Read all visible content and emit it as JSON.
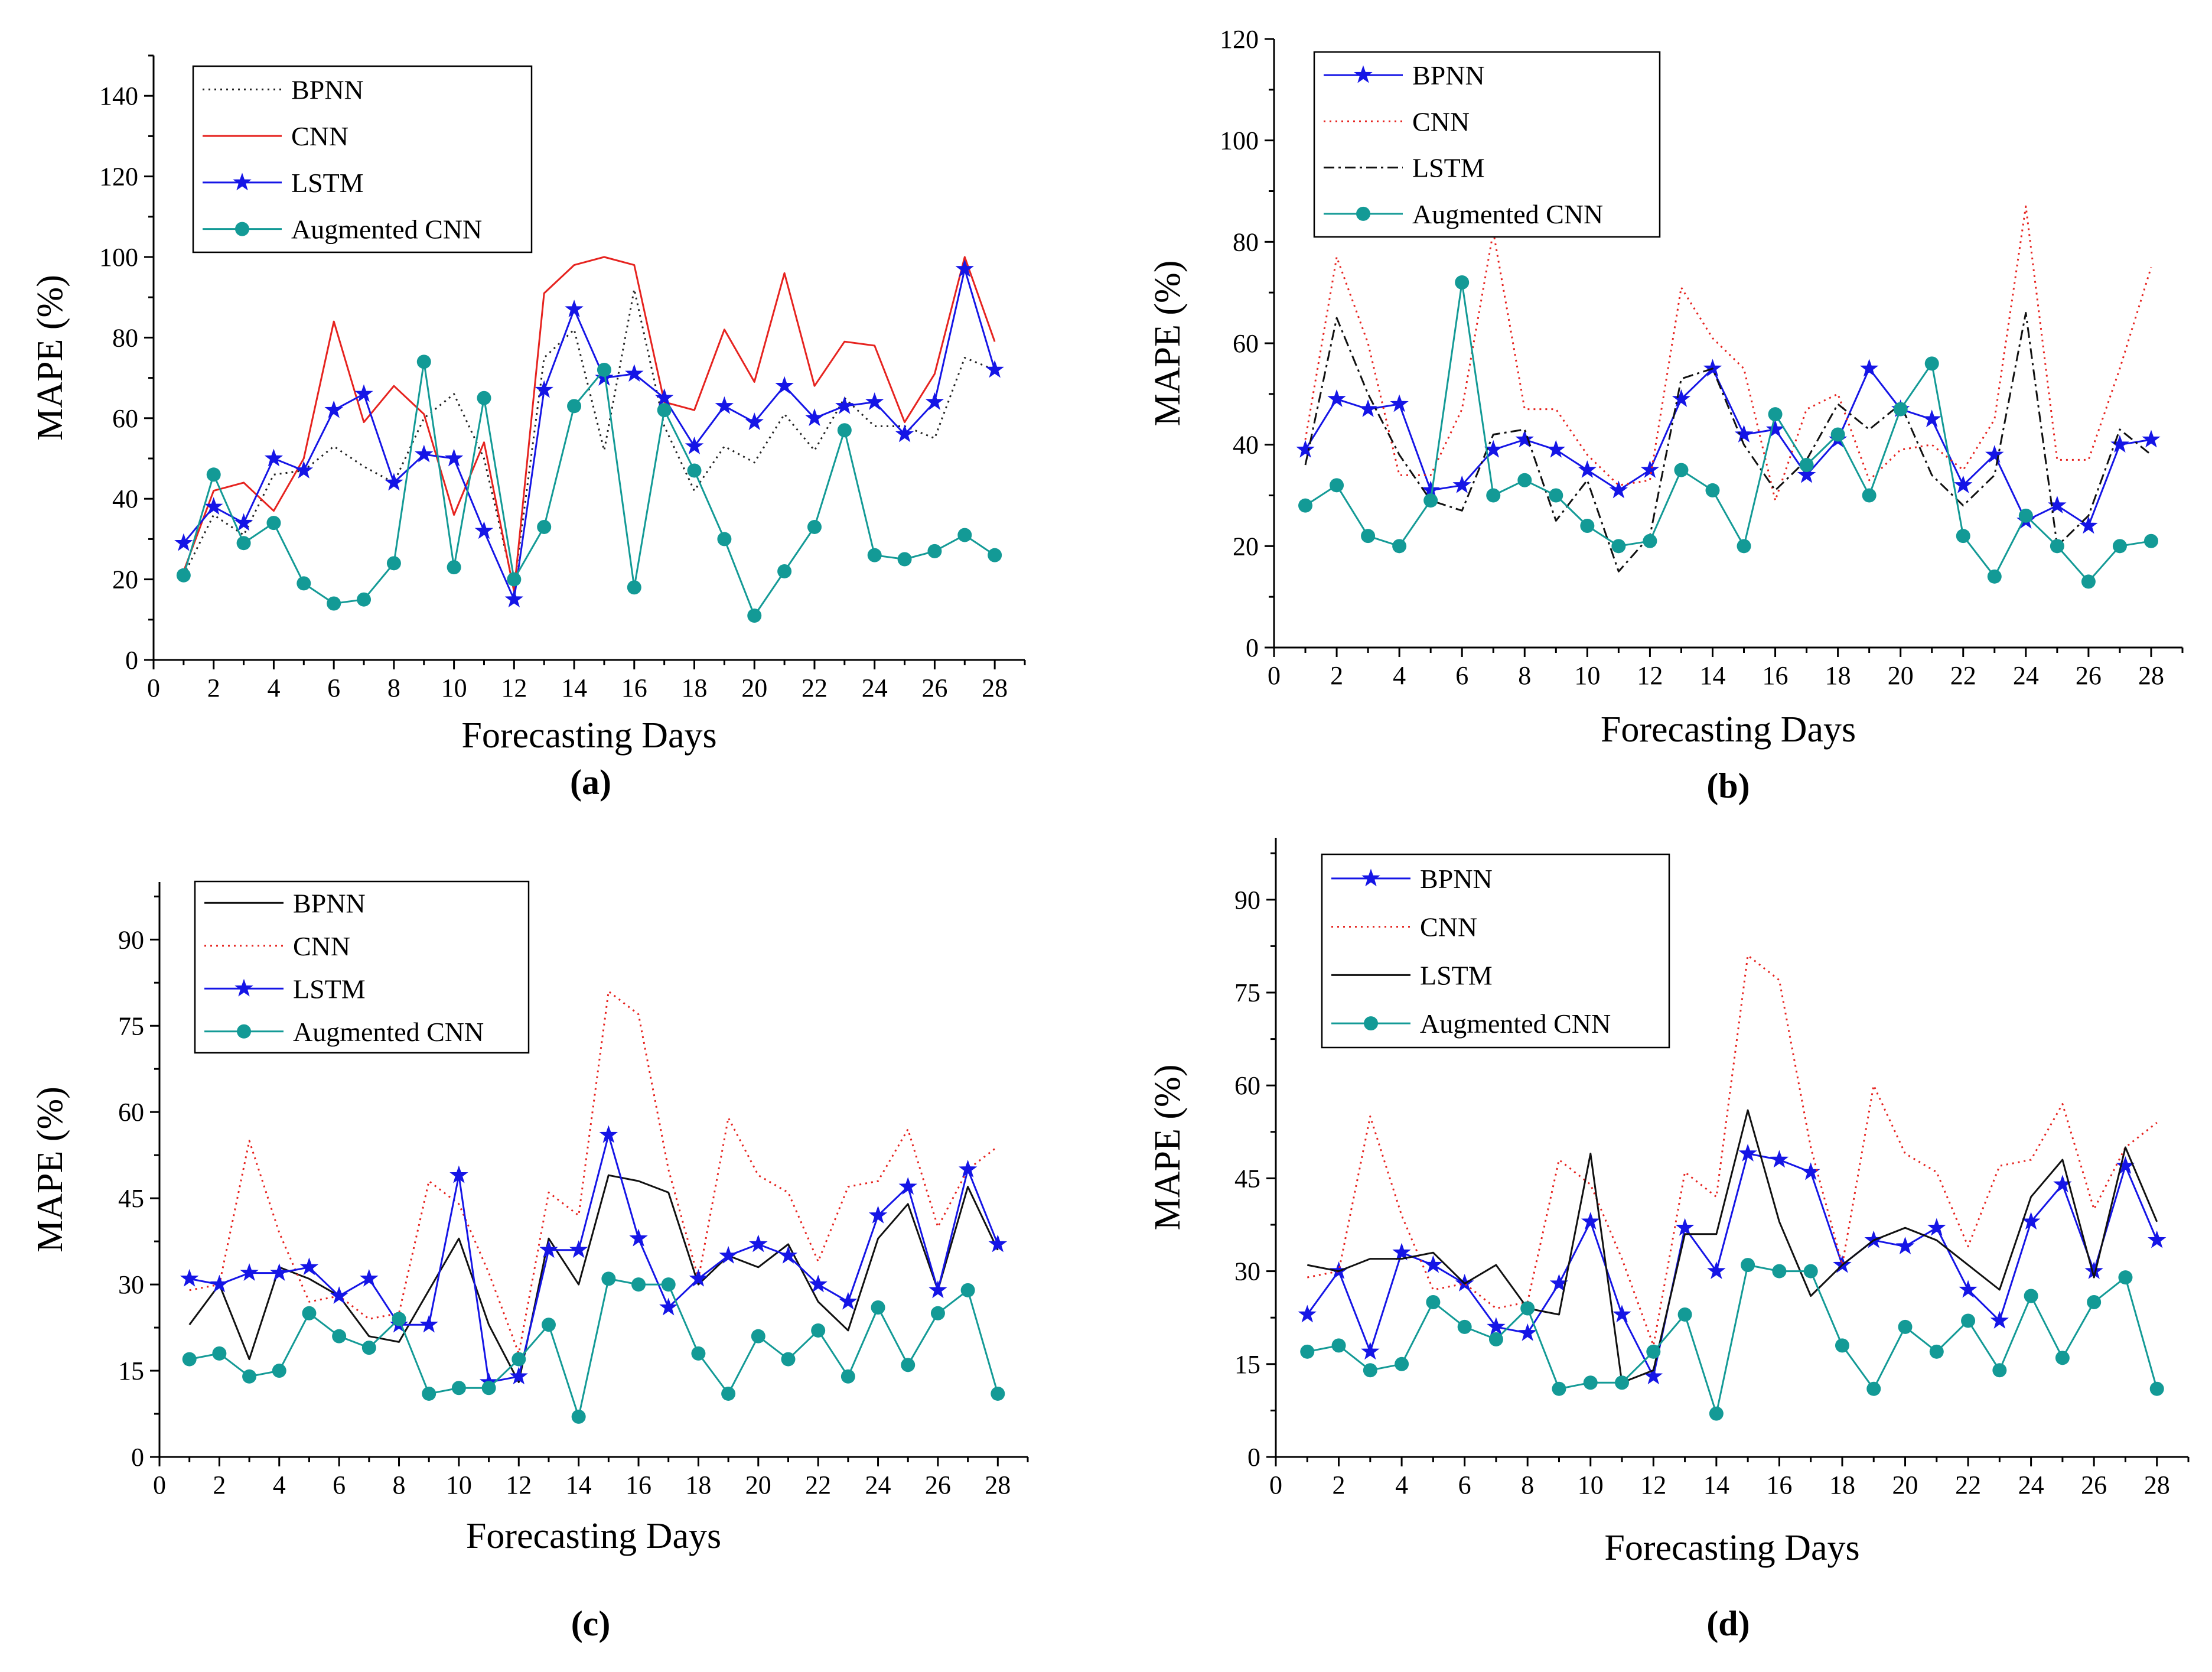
{
  "colors": {
    "bpnn_blue": "#1515e6",
    "cnn_red": "#e6231f",
    "augmented_teal": "#139a96",
    "black": "#111111"
  },
  "chart_data": [
    {
      "panel": "(a)",
      "type": "line",
      "xlabel": "Forecasting Days",
      "ylabel": "MAPE (%)",
      "xlim": [
        0,
        29
      ],
      "ylim": [
        0,
        150
      ],
      "xticks": [
        0,
        2,
        4,
        6,
        8,
        10,
        12,
        14,
        16,
        18,
        20,
        22,
        24,
        26,
        28
      ],
      "yticks": [
        0,
        20,
        40,
        60,
        80,
        100,
        120,
        140
      ],
      "legend_position": "top-left",
      "x": [
        1,
        2,
        3,
        4,
        5,
        6,
        7,
        8,
        9,
        10,
        11,
        12,
        13,
        14,
        15,
        16,
        17,
        18,
        19,
        20,
        21,
        22,
        23,
        24,
        25,
        26,
        27,
        28
      ],
      "series": [
        {
          "name": "BPNN",
          "style": "dotted",
          "color": "#222222",
          "marker": "none",
          "values": [
            21,
            36,
            31,
            46,
            47,
            53,
            48,
            44,
            60,
            66,
            50,
            18,
            75,
            82,
            52,
            92,
            58,
            42,
            53,
            49,
            61,
            52,
            65,
            58,
            58,
            55,
            75,
            72
          ]
        },
        {
          "name": "CNN",
          "style": "solid",
          "color": "#e6231f",
          "marker": "none",
          "values": [
            22,
            42,
            44,
            37,
            50,
            84,
            59,
            68,
            61,
            36,
            54,
            17,
            91,
            98,
            100,
            98,
            64,
            62,
            82,
            69,
            96,
            68,
            79,
            78,
            59,
            71,
            100,
            79
          ]
        },
        {
          "name": "LSTM",
          "style": "solid",
          "color": "#1515e6",
          "marker": "star",
          "values": [
            29,
            38,
            34,
            50,
            47,
            62,
            66,
            44,
            51,
            50,
            32,
            15,
            67,
            87,
            70,
            71,
            65,
            53,
            63,
            59,
            68,
            60,
            63,
            64,
            56,
            64,
            97,
            72
          ]
        },
        {
          "name": "Augmented CNN",
          "style": "solid",
          "color": "#139a96",
          "marker": "circle",
          "values": [
            21,
            46,
            29,
            34,
            19,
            14,
            15,
            24,
            74,
            23,
            65,
            20,
            33,
            63,
            72,
            18,
            62,
            47,
            30,
            11,
            22,
            33,
            57,
            26,
            25,
            27,
            31,
            26
          ]
        }
      ]
    },
    {
      "panel": "(b)",
      "type": "line",
      "xlabel": "Forecasting Days",
      "ylabel": "MAPE (%)",
      "xlim": [
        0,
        29
      ],
      "ylim": [
        0,
        120
      ],
      "xticks": [
        0,
        2,
        4,
        6,
        8,
        10,
        12,
        14,
        16,
        18,
        20,
        22,
        24,
        26,
        28
      ],
      "yticks": [
        0,
        20,
        40,
        60,
        80,
        100,
        120
      ],
      "legend_position": "top-left",
      "x": [
        1,
        2,
        3,
        4,
        5,
        6,
        7,
        8,
        9,
        10,
        11,
        12,
        13,
        14,
        15,
        16,
        17,
        18,
        19,
        20,
        21,
        22,
        23,
        24,
        25,
        26,
        27,
        28
      ],
      "series": [
        {
          "name": "BPNN",
          "style": "solid",
          "color": "#1515e6",
          "marker": "star",
          "values": [
            39,
            49,
            47,
            48,
            31,
            32,
            39,
            41,
            39,
            35,
            31,
            35,
            49,
            55,
            42,
            43,
            34,
            41,
            55,
            47,
            45,
            32,
            38,
            25,
            28,
            24,
            40,
            41
          ]
        },
        {
          "name": "CNN",
          "style": "dotted",
          "color": "#e6231f",
          "marker": "none",
          "values": [
            41,
            77,
            60,
            34,
            34,
            47,
            82,
            47,
            47,
            38,
            32,
            33,
            71,
            61,
            55,
            29,
            47,
            50,
            33,
            39,
            40,
            35,
            45,
            87,
            37,
            37,
            55,
            75
          ]
        },
        {
          "name": "LSTM",
          "style": "dashdot",
          "color": "#111111",
          "marker": "none",
          "values": [
            36,
            65,
            50,
            38,
            29,
            27,
            42,
            43,
            25,
            33,
            15,
            22,
            53,
            55,
            40,
            31,
            37,
            48,
            43,
            48,
            34,
            28,
            34,
            66,
            20,
            26,
            43,
            38
          ]
        },
        {
          "name": "Augmented CNN",
          "style": "solid",
          "color": "#139a96",
          "marker": "circle",
          "values": [
            28,
            32,
            22,
            20,
            29,
            72,
            30,
            33,
            30,
            24,
            20,
            21,
            35,
            31,
            20,
            46,
            36,
            42,
            30,
            47,
            56,
            22,
            14,
            26,
            20,
            13,
            20,
            21
          ]
        }
      ]
    },
    {
      "panel": "(c)",
      "type": "line",
      "xlabel": "Forecasting Days",
      "ylabel": "MAPE (%)",
      "xlim": [
        0,
        29
      ],
      "ylim": [
        0,
        100
      ],
      "xticks": [
        0,
        2,
        4,
        6,
        8,
        10,
        12,
        14,
        16,
        18,
        20,
        22,
        24,
        26,
        28
      ],
      "yticks": [
        0,
        15,
        30,
        45,
        60,
        75,
        90
      ],
      "legend_position": "top-left",
      "x": [
        1,
        2,
        3,
        4,
        5,
        6,
        7,
        8,
        9,
        10,
        11,
        12,
        13,
        14,
        15,
        16,
        17,
        18,
        19,
        20,
        21,
        22,
        23,
        24,
        25,
        26,
        27,
        28
      ],
      "series": [
        {
          "name": "BPNN",
          "style": "solid",
          "color": "#111111",
          "marker": "none",
          "values": [
            23,
            30,
            17,
            33,
            31,
            28,
            21,
            20,
            29,
            38,
            23,
            13,
            38,
            30,
            49,
            48,
            46,
            30,
            35,
            33,
            37,
            27,
            22,
            38,
            44,
            29,
            47,
            36
          ]
        },
        {
          "name": "CNN",
          "style": "dotted",
          "color": "#e6231f",
          "marker": "none",
          "values": [
            29,
            30,
            55,
            39,
            27,
            28,
            24,
            25,
            48,
            44,
            32,
            18,
            46,
            42,
            81,
            77,
            50,
            31,
            59,
            49,
            46,
            34,
            47,
            48,
            57,
            40,
            50,
            54
          ]
        },
        {
          "name": "LSTM",
          "style": "solid",
          "color": "#1515e6",
          "marker": "star",
          "values": [
            31,
            30,
            32,
            32,
            33,
            28,
            31,
            23,
            23,
            49,
            13,
            14,
            36,
            36,
            56,
            38,
            26,
            31,
            35,
            37,
            35,
            30,
            27,
            42,
            47,
            29,
            50,
            37
          ]
        },
        {
          "name": "Augmented CNN",
          "style": "solid",
          "color": "#139a96",
          "marker": "circle",
          "values": [
            17,
            18,
            14,
            15,
            25,
            21,
            19,
            24,
            11,
            12,
            12,
            17,
            23,
            7,
            31,
            30,
            30,
            18,
            11,
            21,
            17,
            22,
            14,
            26,
            16,
            25,
            29,
            11
          ]
        }
      ]
    },
    {
      "panel": "(d)",
      "type": "line",
      "xlabel": "Forecasting Days",
      "ylabel": "MAPE (%)",
      "xlim": [
        0,
        29
      ],
      "ylim": [
        0,
        100
      ],
      "xticks": [
        0,
        2,
        4,
        6,
        8,
        10,
        12,
        14,
        16,
        18,
        20,
        22,
        24,
        26,
        28
      ],
      "yticks": [
        0,
        15,
        30,
        45,
        60,
        75,
        90
      ],
      "legend_position": "top-left",
      "x": [
        1,
        2,
        3,
        4,
        5,
        6,
        7,
        8,
        9,
        10,
        11,
        12,
        13,
        14,
        15,
        16,
        17,
        18,
        19,
        20,
        21,
        22,
        23,
        24,
        25,
        26,
        27,
        28
      ],
      "series": [
        {
          "name": "BPNN",
          "style": "solid",
          "color": "#1515e6",
          "marker": "star",
          "values": [
            23,
            30,
            17,
            33,
            31,
            28,
            21,
            20,
            28,
            38,
            23,
            13,
            37,
            30,
            49,
            48,
            46,
            31,
            35,
            34,
            37,
            27,
            22,
            38,
            44,
            30,
            47,
            35
          ]
        },
        {
          "name": "CNN",
          "style": "dotted",
          "color": "#e6231f",
          "marker": "none",
          "values": [
            29,
            30,
            55,
            39,
            27,
            28,
            24,
            25,
            48,
            44,
            32,
            18,
            46,
            42,
            81,
            77,
            50,
            31,
            60,
            49,
            46,
            34,
            47,
            48,
            57,
            40,
            50,
            54
          ]
        },
        {
          "name": "LSTM",
          "style": "solid",
          "color": "#111111",
          "marker": "none",
          "values": [
            31,
            30,
            32,
            32,
            33,
            28,
            31,
            24,
            23,
            49,
            12,
            14,
            36,
            36,
            56,
            38,
            26,
            31,
            35,
            37,
            35,
            31,
            27,
            42,
            48,
            29,
            50,
            38
          ]
        },
        {
          "name": "Augmented CNN",
          "style": "solid",
          "color": "#139a96",
          "marker": "circle",
          "values": [
            17,
            18,
            14,
            15,
            25,
            21,
            19,
            24,
            11,
            12,
            12,
            17,
            23,
            7,
            31,
            30,
            30,
            18,
            11,
            21,
            17,
            22,
            14,
            26,
            16,
            25,
            29,
            11
          ]
        }
      ]
    }
  ]
}
